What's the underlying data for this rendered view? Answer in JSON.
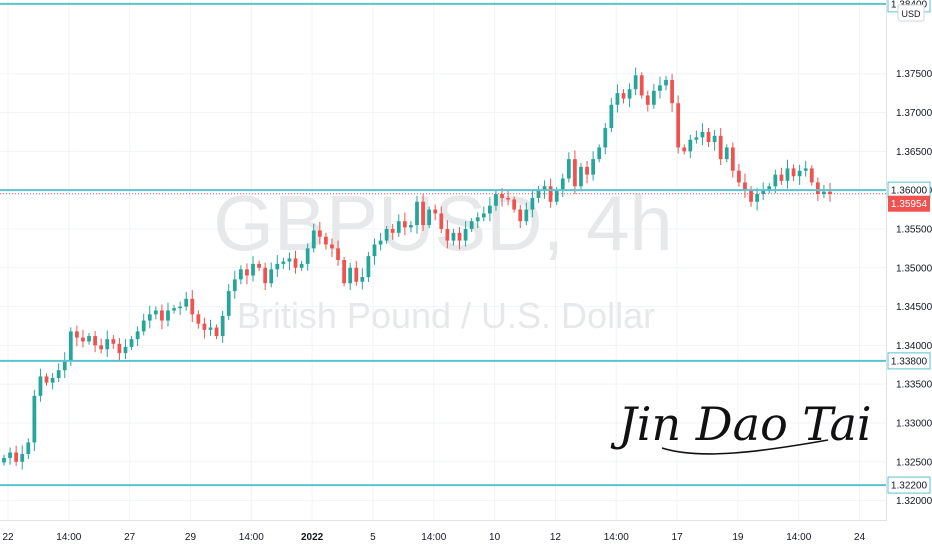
{
  "watermark": {
    "symbol": "GBPUSD, 4h",
    "description": "British Pound / U.S. Dollar"
  },
  "currency_button": "USD",
  "signature": "Jin Dao Tai",
  "colors": {
    "up": "#26a69a",
    "down": "#ef5350",
    "level_line": "#5bc3cf",
    "grid": "#f0f3fa",
    "last_price_bg": "#ef5350"
  },
  "chart_data": {
    "type": "candlestick",
    "symbol": "GBPUSD",
    "timeframe": "4h",
    "ylim": [
      1.3175,
      1.3845
    ],
    "y_ticks": [
      "1.32000",
      "1.32500",
      "1.33000",
      "1.33500",
      "1.34000",
      "1.34500",
      "1.35000",
      "1.35500",
      "1.36000",
      "1.36500",
      "1.37000",
      "1.37500"
    ],
    "x_ticks": [
      "22",
      "14:00",
      "27",
      "29",
      "14:00",
      "2022",
      "5",
      "14:00",
      "10",
      "12",
      "14:00",
      "17",
      "19",
      "14:00",
      "24"
    ],
    "horizontal_levels": [
      "1.38400",
      "1.33800",
      "1.32200",
      "1.36000"
    ],
    "last_price": "1.35954",
    "closes": [
      1.3255,
      1.3262,
      1.325,
      1.326,
      1.3275,
      1.3335,
      1.336,
      1.3352,
      1.3358,
      1.3368,
      1.338,
      1.3418,
      1.341,
      1.3405,
      1.3412,
      1.34,
      1.3395,
      1.3408,
      1.3402,
      1.339,
      1.3398,
      1.3408,
      1.3418,
      1.3432,
      1.344,
      1.3445,
      1.3432,
      1.3445,
      1.3448,
      1.345,
      1.346,
      1.344,
      1.3428,
      1.342,
      1.3423,
      1.3412,
      1.3438,
      1.347,
      1.3485,
      1.3498,
      1.349,
      1.3505,
      1.35,
      1.348,
      1.3498,
      1.3505,
      1.3508,
      1.3512,
      1.35,
      1.3505,
      1.3525,
      1.3548,
      1.354,
      1.353,
      1.3525,
      1.351,
      1.348,
      1.35,
      1.3482,
      1.3488,
      1.3515,
      1.353,
      1.3535,
      1.355,
      1.3545,
      1.356,
      1.3552,
      1.3555,
      1.3585,
      1.3555,
      1.3575,
      1.357,
      1.355,
      1.3535,
      1.3545,
      1.3535,
      1.355,
      1.356,
      1.3565,
      1.357,
      1.358,
      1.3595,
      1.359,
      1.3588,
      1.3575,
      1.356,
      1.3575,
      1.359,
      1.36,
      1.3605,
      1.3585,
      1.36,
      1.3615,
      1.364,
      1.3605,
      1.363,
      1.362,
      1.364,
      1.3655,
      1.368,
      1.371,
      1.3725,
      1.3718,
      1.373,
      1.3748,
      1.3722,
      1.371,
      1.3728,
      1.3735,
      1.3742,
      1.3712,
      1.3655,
      1.365,
      1.3665,
      1.3668,
      1.3675,
      1.3662,
      1.367,
      1.364,
      1.3655,
      1.3625,
      1.361,
      1.36,
      1.3585,
      1.3595,
      1.36,
      1.3605,
      1.362,
      1.3612,
      1.3628,
      1.3618,
      1.3625,
      1.3628,
      1.361,
      1.3595,
      1.3598,
      1.3595
    ]
  }
}
